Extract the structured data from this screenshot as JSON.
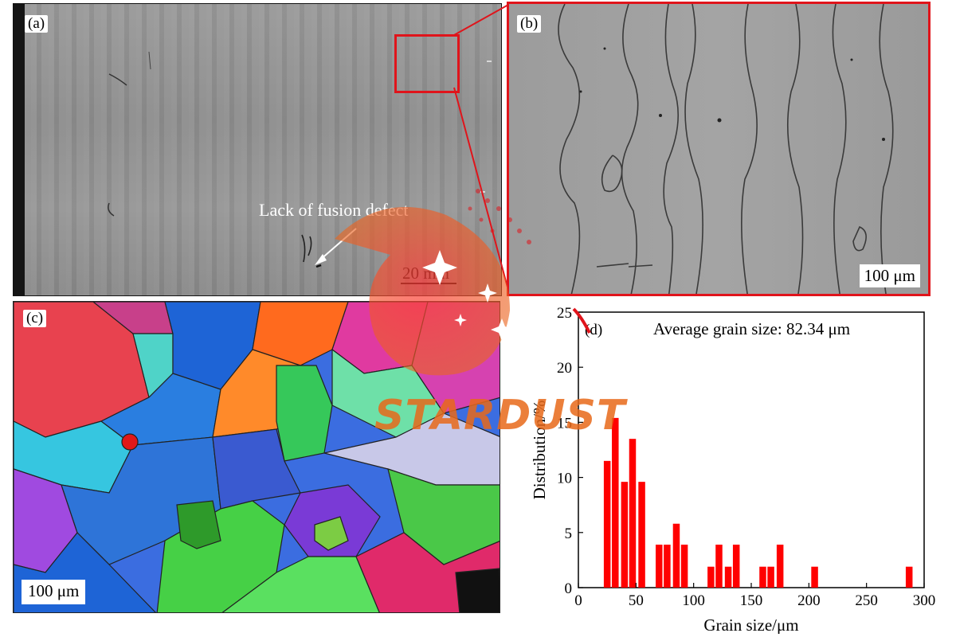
{
  "panels": {
    "a": {
      "label": "(a)",
      "annotation": "Lack of fusion defect",
      "scale": "20 mm"
    },
    "b": {
      "label": "(b)",
      "scale": "100 μm"
    },
    "c": {
      "label": "(c)",
      "scale": "100 μm"
    },
    "d": {
      "label": "(d)"
    }
  },
  "watermark": {
    "text": "STARDUST",
    "color": "#e8691a"
  },
  "colors": {
    "frame_red": "#e0141b",
    "bar_red": "#ff0000"
  },
  "chart_data": {
    "type": "bar",
    "annotation": "Average grain size: 82.34 μm",
    "xlabel": "Grain size/μm",
    "ylabel": "Distribution/%",
    "xlim": [
      0,
      300
    ],
    "ylim": [
      0,
      25
    ],
    "xticks": [
      0,
      50,
      100,
      150,
      200,
      250,
      300
    ],
    "yticks": [
      0,
      5,
      10,
      15,
      20,
      25
    ],
    "bar_width": 7,
    "x": [
      25,
      32,
      40,
      47,
      55,
      62,
      70,
      77,
      85,
      92,
      100,
      107,
      115,
      122,
      130,
      137,
      145,
      152,
      160,
      167,
      175,
      182,
      190,
      197,
      205,
      212,
      220,
      227,
      235,
      242,
      250,
      257,
      265,
      272,
      280,
      287
    ],
    "values": [
      11.5,
      15.4,
      9.6,
      13.5,
      9.6,
      0,
      3.9,
      3.9,
      5.8,
      3.9,
      0,
      0,
      1.9,
      3.9,
      1.9,
      3.9,
      0,
      0,
      1.9,
      1.9,
      3.9,
      0,
      0,
      0,
      1.9,
      0,
      0,
      0,
      0,
      0,
      0,
      0,
      0,
      0,
      0,
      1.9
    ]
  }
}
